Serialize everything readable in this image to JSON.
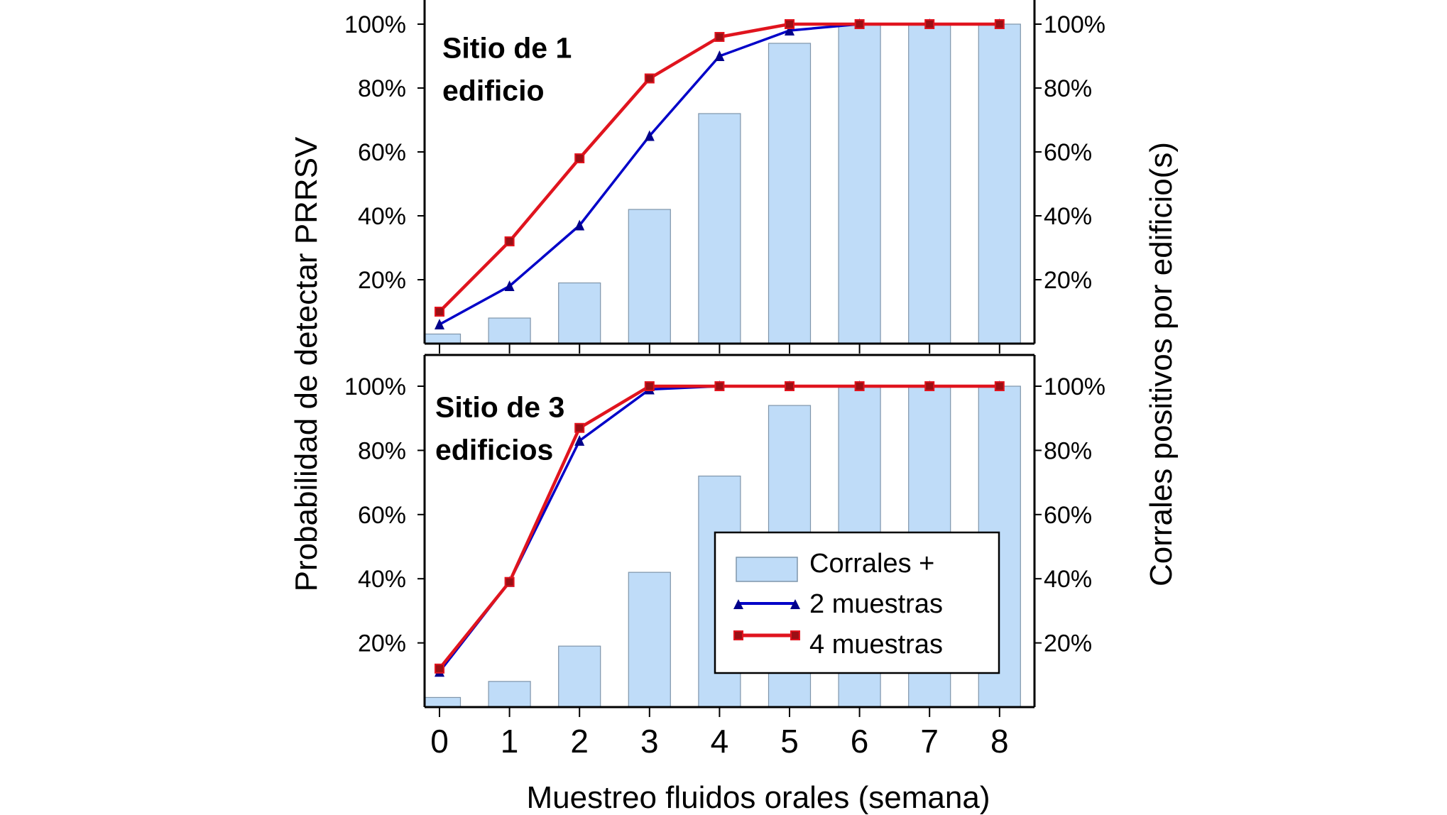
{
  "chart_data": [
    {
      "type": "bar+line",
      "title": "Sitio de 1 edificio",
      "title_lines": [
        "Sitio de 1",
        "edificio"
      ],
      "x": [
        0,
        1,
        2,
        3,
        4,
        5,
        6,
        7,
        8
      ],
      "xlabel": "Muestreo fluidos orales (semana)",
      "ylabel_left": "Probabilidad de detectar PRRSV",
      "ylabel_right": "Corrales positivos por edificio(s)",
      "yticks": [
        "20%",
        "40%",
        "60%",
        "80%",
        "100%"
      ],
      "ylim": [
        0,
        100
      ],
      "series": [
        {
          "name": "Corrales +",
          "kind": "bar",
          "color": "#bfdcf8",
          "values": [
            3,
            8,
            19,
            42,
            72,
            94,
            100,
            100,
            100
          ]
        },
        {
          "name": "2 muestras",
          "kind": "line",
          "marker": "triangle",
          "color": "#0000c8",
          "values": [
            6,
            18,
            37,
            65,
            90,
            98,
            100,
            100,
            100
          ]
        },
        {
          "name": "4 muestras",
          "kind": "line",
          "marker": "square",
          "color": "#e0141e",
          "values": [
            10,
            32,
            58,
            83,
            96,
            100,
            100,
            100,
            100
          ]
        }
      ]
    },
    {
      "type": "bar+line",
      "title": "Sitio de 3 edificios",
      "title_lines": [
        "Sitio de 3",
        "edificios"
      ],
      "x": [
        0,
        1,
        2,
        3,
        4,
        5,
        6,
        7,
        8
      ],
      "yticks": [
        "20%",
        "40%",
        "60%",
        "80%",
        "100%"
      ],
      "ylim": [
        0,
        100
      ],
      "legend": "bottom-right",
      "series": [
        {
          "name": "Corrales +",
          "kind": "bar",
          "color": "#bfdcf8",
          "values": [
            3,
            8,
            19,
            42,
            72,
            94,
            100,
            100,
            100
          ]
        },
        {
          "name": "2 muestras",
          "kind": "line",
          "marker": "triangle",
          "color": "#0000c8",
          "values": [
            11,
            39,
            83,
            99,
            100,
            100,
            100,
            100,
            100
          ]
        },
        {
          "name": "4 muestras",
          "kind": "line",
          "marker": "square",
          "color": "#e0141e",
          "values": [
            12,
            39,
            87,
            100,
            100,
            100,
            100,
            100,
            100
          ]
        }
      ]
    }
  ],
  "xticks": [
    "0",
    "1",
    "2",
    "3",
    "4",
    "5",
    "6",
    "7",
    "8"
  ]
}
